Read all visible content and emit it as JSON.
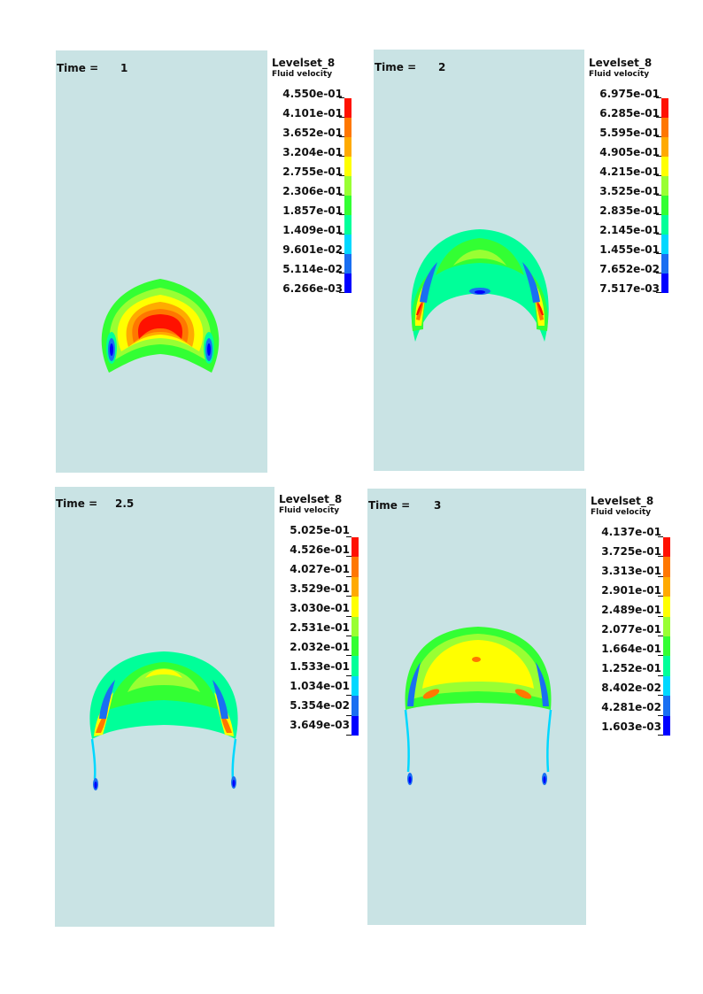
{
  "colors": {
    "background": "#c9e3e4",
    "scale": [
      "#0000ff",
      "#1a6ff2",
      "#00d8ff",
      "#00ff99",
      "#33ff33",
      "#99ff33",
      "#ffff00",
      "#ffaa00",
      "#ff7700",
      "#ff1100"
    ]
  },
  "panels": [
    {
      "id": "t1",
      "time_label": "Time =",
      "time_value": "1",
      "legend_title": "Levelset_8",
      "legend_subtitle": "Fluid velocity",
      "legend_values": [
        "4.550e-01",
        "4.101e-01",
        "3.652e-01",
        "3.204e-01",
        "2.755e-01",
        "2.306e-01",
        "1.857e-01",
        "1.409e-01",
        "9.601e-02",
        "5.114e-02",
        "6.266e-03"
      ]
    },
    {
      "id": "t2",
      "time_label": "Time =",
      "time_value": "2",
      "legend_title": "Levelset_8",
      "legend_subtitle": "Fluid velocity",
      "legend_values": [
        "6.975e-01",
        "6.285e-01",
        "5.595e-01",
        "4.905e-01",
        "4.215e-01",
        "3.525e-01",
        "2.835e-01",
        "2.145e-01",
        "1.455e-01",
        "7.652e-02",
        "7.517e-03"
      ]
    },
    {
      "id": "t25",
      "time_label": "Time =",
      "time_value": "2.5",
      "legend_title": "Levelset_8",
      "legend_subtitle": "Fluid velocity",
      "legend_values": [
        "5.025e-01",
        "4.526e-01",
        "4.027e-01",
        "3.529e-01",
        "3.030e-01",
        "2.531e-01",
        "2.032e-01",
        "1.533e-01",
        "1.034e-01",
        "5.354e-02",
        "3.649e-03"
      ]
    },
    {
      "id": "t3",
      "time_label": "Time =",
      "time_value": "3",
      "legend_title": "Levelset_8",
      "legend_subtitle": "Fluid velocity",
      "legend_values": [
        "4.137e-01",
        "3.725e-01",
        "3.313e-01",
        "2.901e-01",
        "2.489e-01",
        "2.077e-01",
        "1.664e-01",
        "1.252e-01",
        "8.402e-02",
        "4.281e-02",
        "1.603e-03"
      ]
    }
  ]
}
